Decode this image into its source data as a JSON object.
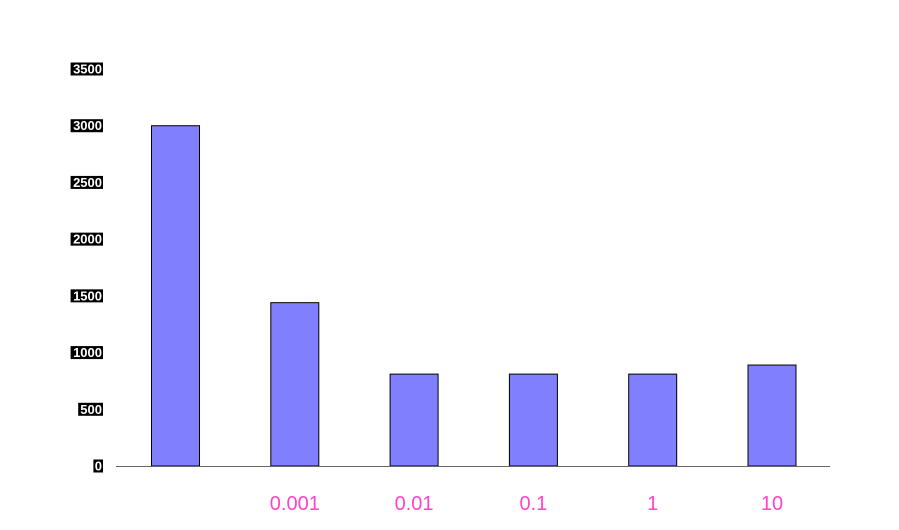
{
  "chart_data": {
    "type": "bar",
    "categories": [
      "",
      "0.001",
      "0.01",
      "0.1",
      "1",
      "10"
    ],
    "values": [
      3000,
      1440,
      810,
      810,
      810,
      890
    ],
    "title": "",
    "xlabel": "",
    "ylabel": "",
    "ylim": [
      0,
      3500
    ],
    "yticks": [
      "0",
      "500",
      "1000",
      "1500",
      "2000",
      "2500",
      "3000",
      "3500"
    ],
    "grid": false,
    "legend": "none",
    "colors": {
      "bar_fill": "#8080ff",
      "bar_stroke": "#000000",
      "xtick_label": "#ff44cc",
      "axis": "#000000"
    }
  }
}
